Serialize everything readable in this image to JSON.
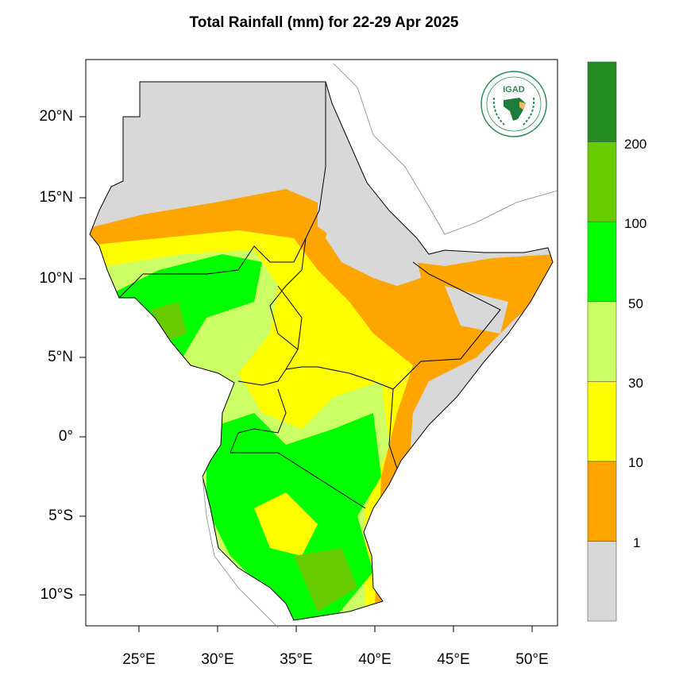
{
  "title": "Total Rainfall (mm) for 22-29 Apr 2025",
  "map": {
    "lat_labels": [
      "20°N",
      "15°N",
      "10°N",
      "5°N",
      "0°",
      "5°S",
      "10°S"
    ],
    "lon_labels": [
      "25°E",
      "30°E",
      "35°E",
      "40°E",
      "45°E",
      "50°E"
    ],
    "extent": {
      "lon": [
        21.6,
        51.6
      ],
      "lat": [
        -11.9,
        23.6
      ]
    },
    "land_no_data_color": "#d8d8d8"
  },
  "colorbar": {
    "bins": [
      {
        "color": "#d8d8d8"
      },
      {
        "color": "#ffa500"
      },
      {
        "color": "#ffff00"
      },
      {
        "color": "#ccff66"
      },
      {
        "color": "#00ff00"
      },
      {
        "color": "#66cc00"
      },
      {
        "color": "#228b22"
      }
    ],
    "labels": [
      "1",
      "10",
      "30",
      "50",
      "100",
      "200"
    ]
  },
  "logo": {
    "text": "IGAD",
    "ring_text": "INTERGOVERNMENTAL AUTHORITY ON DEVELOPMENT"
  }
}
